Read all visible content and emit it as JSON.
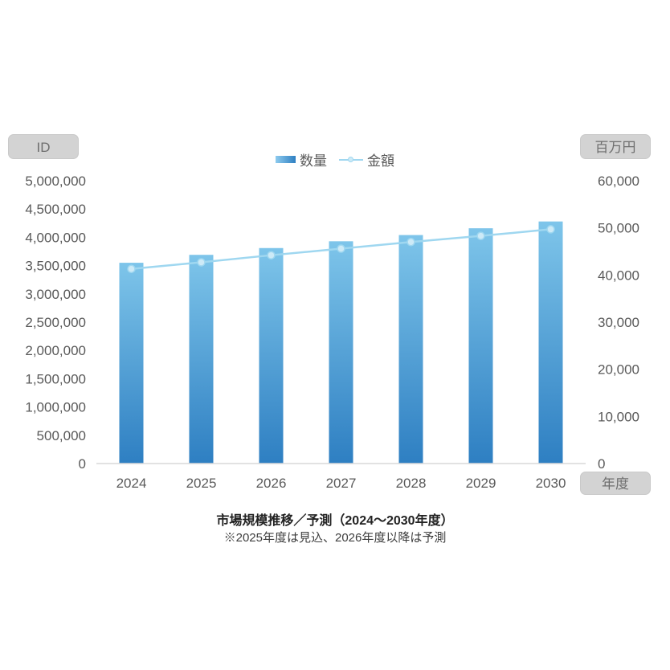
{
  "badges": {
    "left_axis_unit": "ID",
    "right_axis_unit": "百万円",
    "x_axis_unit": "年度"
  },
  "legend": {
    "items": [
      {
        "label": "数量",
        "type": "bar"
      },
      {
        "label": "金額",
        "type": "line"
      }
    ]
  },
  "title": "市場規模推移／予測（2024～2030年度）",
  "subtitle": "※2025年度は見込、2026年度以降は予測",
  "chart_data": {
    "type": "bar",
    "combo": "bar+line",
    "title": "市場規模推移／予測（2024～2030年度）",
    "subtitle": "※2025年度は見込、2026年度以降は予測",
    "categories": [
      "2024",
      "2025",
      "2026",
      "2027",
      "2028",
      "2029",
      "2030"
    ],
    "series": [
      {
        "name": "数量",
        "type": "bar",
        "axis": "left",
        "values": [
          3550000,
          3690000,
          3810000,
          3930000,
          4040000,
          4160000,
          4280000
        ]
      },
      {
        "name": "金額",
        "type": "line",
        "axis": "right",
        "values": [
          41300,
          42700,
          44200,
          45600,
          47000,
          48300,
          49700
        ]
      }
    ],
    "axes": {
      "left": {
        "label": "ID",
        "min": 0,
        "max": 5000000,
        "step": 500000,
        "tick_labels": [
          "0",
          "500,000",
          "1,000,000",
          "1,500,000",
          "2,000,000",
          "2,500,000",
          "3,000,000",
          "3,500,000",
          "4,000,000",
          "4,500,000",
          "5,000,000"
        ]
      },
      "right": {
        "label": "百万円",
        "min": 0,
        "max": 60000,
        "step": 10000,
        "tick_labels": [
          "0",
          "10,000",
          "20,000",
          "30,000",
          "40,000",
          "50,000",
          "60,000"
        ]
      },
      "x": {
        "label": "年度"
      }
    },
    "legend_position": "top",
    "grid": false,
    "colors": {
      "bar_gradient_top": "#7ec5ea",
      "bar_gradient_bottom": "#2e7fc2",
      "line": "#9fd7f0",
      "marker_fill": "#cdeaf7",
      "axis_line": "#d9d9d9",
      "tick_text": "#595959",
      "badge_bg": "#d3d3d3",
      "badge_text": "#6e6e6e"
    }
  }
}
